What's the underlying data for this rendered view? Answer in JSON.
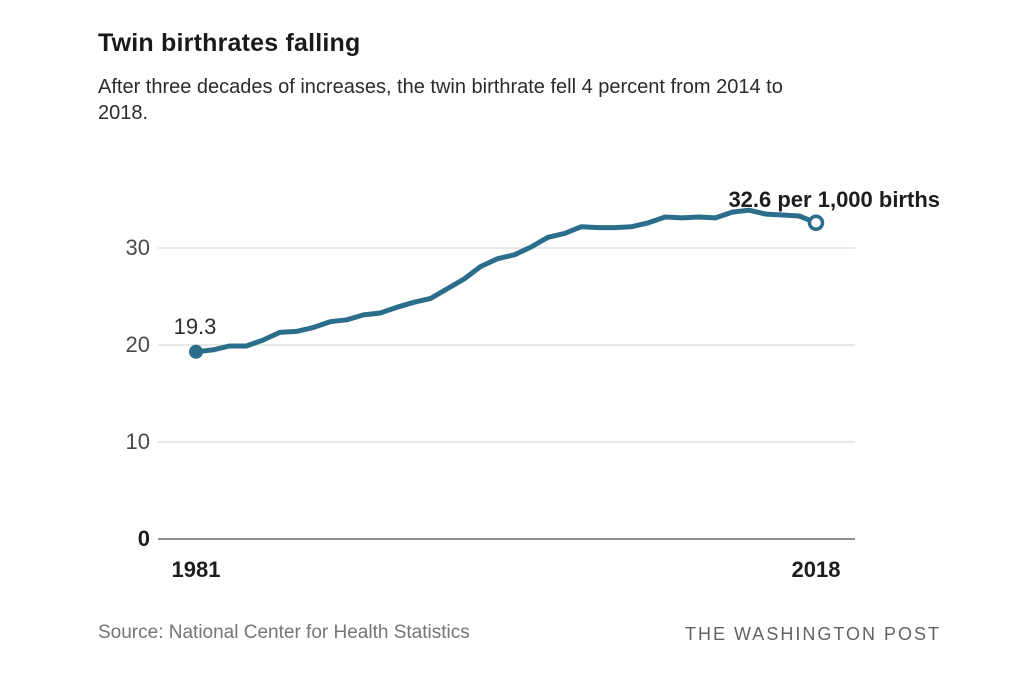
{
  "header": {
    "title": "Twin birthrates falling",
    "subtitle_line1": "After three decades of increases, the twin birthrate fell 4 percent from 2014 to",
    "subtitle_line2": "2018."
  },
  "annotations": {
    "start_value_label": "19.3",
    "end_value_label": "32.6 per 1,000 births"
  },
  "footer": {
    "source": "Source: National Center for Health Statistics",
    "brand": "THE WASHINGTON POST"
  },
  "colors": {
    "line": "#2b6e8c",
    "gridline": "#d9d9d9",
    "axis": "#8f8f8f"
  },
  "chart_data": {
    "type": "line",
    "title": "Twin birthrates falling",
    "x": [
      1981,
      1982,
      1983,
      1984,
      1985,
      1986,
      1987,
      1988,
      1989,
      1990,
      1991,
      1992,
      1993,
      1994,
      1995,
      1996,
      1997,
      1998,
      1999,
      2000,
      2001,
      2002,
      2003,
      2004,
      2005,
      2006,
      2007,
      2008,
      2009,
      2010,
      2011,
      2012,
      2013,
      2014,
      2015,
      2016,
      2017,
      2018
    ],
    "series": [
      {
        "name": "Twin births per 1,000 births",
        "values": [
          19.3,
          19.5,
          19.9,
          19.9,
          20.5,
          21.3,
          21.4,
          21.8,
          22.4,
          22.6,
          23.1,
          23.3,
          23.9,
          24.4,
          24.8,
          25.8,
          26.8,
          28.1,
          28.9,
          29.3,
          30.1,
          31.1,
          31.5,
          32.2,
          32.1,
          32.1,
          32.2,
          32.6,
          33.2,
          33.1,
          33.2,
          33.1,
          33.7,
          33.9,
          33.5,
          33.4,
          33.3,
          32.6
        ]
      }
    ],
    "y_ticks": [
      0,
      10,
      20,
      30
    ],
    "x_tick_labels": [
      "1981",
      "2018"
    ],
    "ylim": [
      0,
      36
    ],
    "grid": true,
    "legend": false,
    "first_point_label": "19.3",
    "last_point_label": "32.6 per 1,000 births",
    "first_marker": "filled-dot",
    "last_marker": "open-circle"
  }
}
